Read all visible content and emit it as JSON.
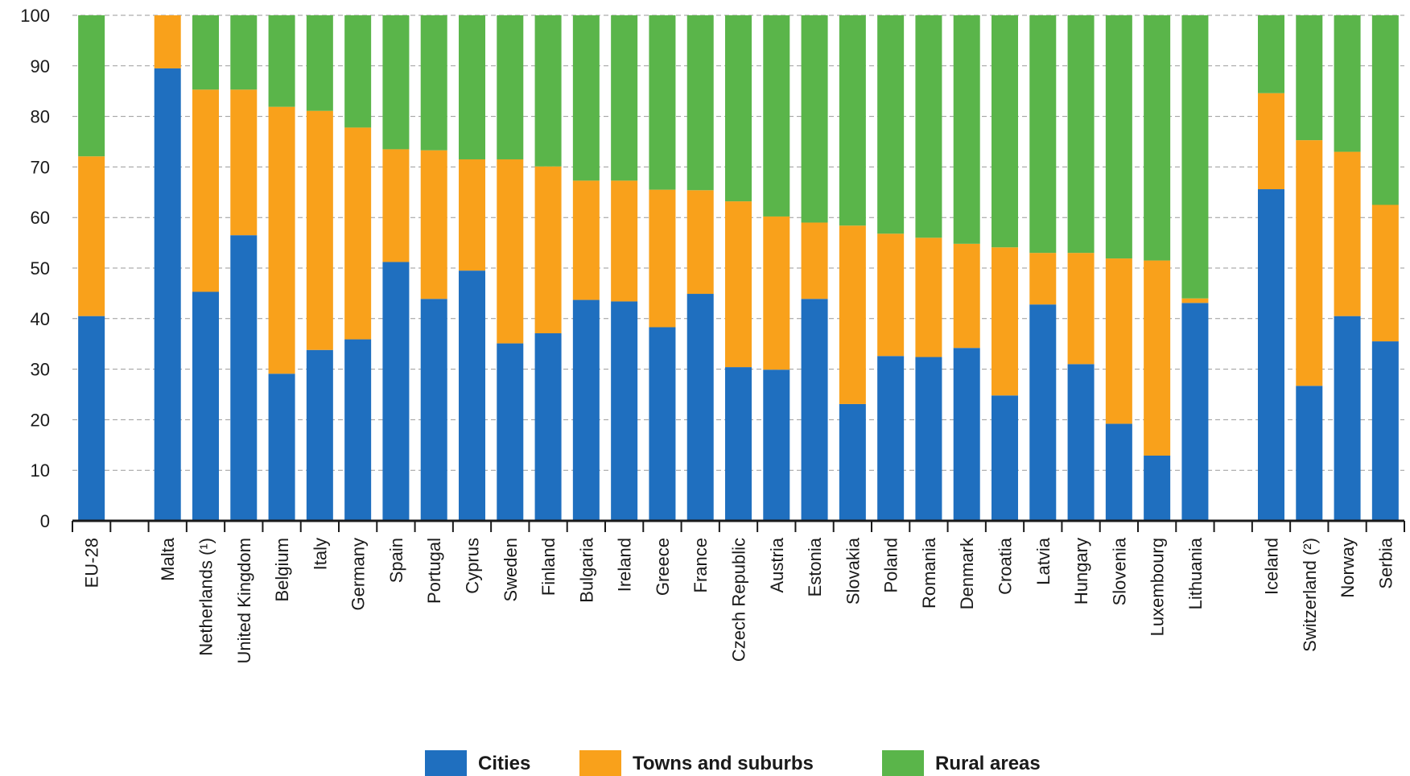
{
  "chart_data": {
    "type": "bar",
    "stacked": true,
    "ylim": [
      0,
      100
    ],
    "yticks": [
      0,
      10,
      20,
      30,
      40,
      50,
      60,
      70,
      80,
      90,
      100
    ],
    "grid": true,
    "legend_position": "bottom",
    "categories": [
      "EU-28",
      "",
      "Malta",
      "Netherlands (¹)",
      "United Kingdom",
      "Belgium",
      "Italy",
      "Germany",
      "Spain",
      "Portugal",
      "Cyprus",
      "Sweden",
      "Finland",
      "Bulgaria",
      "Ireland",
      "Greece",
      "France",
      "Czech Republic",
      "Austria",
      "Estonia",
      "Slovakia",
      "Poland",
      "Romania",
      "Denmark",
      "Croatia",
      "Latvia",
      "Hungary",
      "Slovenia",
      "Luxembourg",
      "Lithuania",
      "",
      "Iceland",
      "Switzerland (²)",
      "Norway",
      "Serbia"
    ],
    "series": [
      {
        "name": "Cities",
        "color": "#1f6fbf",
        "values": [
          40.5,
          null,
          89.5,
          45.3,
          56.5,
          29.1,
          33.8,
          35.9,
          51.2,
          43.9,
          49.5,
          35.1,
          37.1,
          43.7,
          43.4,
          38.3,
          44.9,
          30.4,
          29.9,
          43.9,
          23.1,
          32.6,
          32.4,
          34.2,
          24.8,
          42.8,
          31.0,
          19.2,
          12.9,
          43.1,
          null,
          65.6,
          26.7,
          40.5,
          35.5
        ]
      },
      {
        "name": "Towns and suburbs",
        "color": "#f9a11b",
        "values": [
          31.6,
          null,
          10.5,
          40.0,
          28.8,
          52.8,
          47.3,
          41.9,
          22.3,
          29.4,
          22.0,
          36.4,
          33.0,
          23.6,
          23.9,
          27.2,
          20.5,
          32.8,
          30.3,
          15.1,
          35.3,
          24.2,
          23.6,
          20.6,
          29.3,
          10.2,
          22.0,
          32.7,
          38.6,
          0.9,
          null,
          19.0,
          48.6,
          32.5,
          27.0
        ]
      },
      {
        "name": "Rural areas",
        "color": "#5ab54a",
        "values": [
          27.9,
          null,
          0.0,
          14.7,
          14.7,
          18.1,
          18.9,
          22.2,
          26.5,
          26.7,
          28.5,
          28.5,
          29.9,
          32.7,
          32.7,
          34.5,
          34.6,
          36.8,
          39.8,
          41.0,
          41.6,
          43.2,
          44.0,
          45.2,
          45.9,
          47.0,
          47.0,
          48.1,
          48.5,
          56.0,
          null,
          15.4,
          24.7,
          27.0,
          37.5
        ]
      }
    ]
  }
}
